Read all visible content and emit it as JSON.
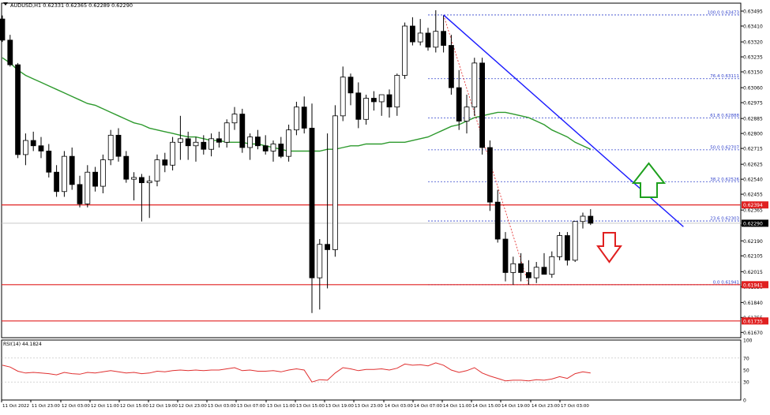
{
  "window": {
    "symbol_header": "AUDUSD,H1  0.62331 0.62365 0.62289 0.62290",
    "rsi_header": "RSI(14) 44.1824"
  },
  "colors": {
    "bull": "#ffffff",
    "bear": "#000000",
    "candle_outline": "#000000",
    "ma": "#2e9a2e",
    "trendline": "#1a1aff",
    "fib": "#3344cc",
    "support_resistance": "#e02020",
    "current_price_line": "#c0c0c0",
    "rsi_line": "#e03030",
    "arrow_up": "#1ea01e",
    "arrow_down": "#e02020",
    "price_badge_bg": "#e02020",
    "price_badge_current_bg": "#000000"
  },
  "chart_data": [
    {
      "type": "candlestick",
      "symbol": "AUDUSD",
      "timeframe": "H1",
      "ylim": [
        0.6164,
        0.6354
      ],
      "y_ticks": [
        "0.63495",
        "0.63410",
        "0.63320",
        "0.63235",
        "0.63150",
        "0.63060",
        "0.62975",
        "0.62885",
        "0.62800",
        "0.62715",
        "0.62625",
        "0.62540",
        "0.62455",
        "0.62365",
        "0.62280",
        "0.62190",
        "0.62105",
        "0.62015",
        "0.61930",
        "0.61840",
        "0.61755",
        "0.61670"
      ],
      "x_ticks": [
        "11 Oct 2022",
        "11 Oct 23:00",
        "12 Oct 03:00",
        "12 Oct 11:00",
        "12 Oct 15:00",
        "12 Oct 19:00",
        "12 Oct 23:00",
        "13 Oct 03:00",
        "13 Oct 07:00",
        "13 Oct 11:00",
        "13 Oct 15:00",
        "13 Oct 19:00",
        "13 Oct 23:00",
        "14 Oct 03:00",
        "14 Oct 07:00",
        "14 Oct 11:00",
        "14 Oct 15:00",
        "14 Oct 19:00",
        "14 Oct 23:00",
        "17 Oct 03:00"
      ],
      "candles": [
        [
          0.6345,
          0.6347,
          0.6332,
          0.6333
        ],
        [
          0.6333,
          0.6336,
          0.6318,
          0.6319
        ],
        [
          0.6319,
          0.632,
          0.6266,
          0.6268
        ],
        [
          0.6268,
          0.628,
          0.6262,
          0.6276
        ],
        [
          0.6276,
          0.6281,
          0.627,
          0.6273
        ],
        [
          0.6273,
          0.6278,
          0.6266,
          0.627
        ],
        [
          0.627,
          0.6274,
          0.6255,
          0.6258
        ],
        [
          0.6258,
          0.6262,
          0.6244,
          0.6247
        ],
        [
          0.6247,
          0.627,
          0.6244,
          0.6267
        ],
        [
          0.6267,
          0.6272,
          0.6248,
          0.6251
        ],
        [
          0.6251,
          0.6256,
          0.6238,
          0.624
        ],
        [
          0.624,
          0.6262,
          0.6238,
          0.6258
        ],
        [
          0.6258,
          0.6261,
          0.6247,
          0.625
        ],
        [
          0.625,
          0.6268,
          0.6246,
          0.6265
        ],
        [
          0.6265,
          0.6282,
          0.6262,
          0.6279
        ],
        [
          0.6279,
          0.6283,
          0.6264,
          0.6267
        ],
        [
          0.6267,
          0.627,
          0.6252,
          0.6254
        ],
        [
          0.6254,
          0.6258,
          0.6242,
          0.6255
        ],
        [
          0.6255,
          0.6257,
          0.623,
          0.6252
        ],
        [
          0.6252,
          0.6256,
          0.6232,
          0.6253
        ],
        [
          0.6253,
          0.6268,
          0.625,
          0.6265
        ],
        [
          0.6265,
          0.6269,
          0.6258,
          0.6262
        ],
        [
          0.6262,
          0.6278,
          0.6259,
          0.6275
        ],
        [
          0.6275,
          0.629,
          0.6265,
          0.6277
        ],
        [
          0.6277,
          0.6281,
          0.6265,
          0.6273
        ],
        [
          0.6273,
          0.6278,
          0.6264,
          0.6275
        ],
        [
          0.6275,
          0.6279,
          0.6268,
          0.6271
        ],
        [
          0.6271,
          0.628,
          0.6267,
          0.6277
        ],
        [
          0.6277,
          0.6281,
          0.6272,
          0.6275
        ],
        [
          0.6275,
          0.6288,
          0.6272,
          0.6286
        ],
        [
          0.6286,
          0.6295,
          0.6282,
          0.6291
        ],
        [
          0.6291,
          0.6294,
          0.6269,
          0.6272
        ],
        [
          0.6272,
          0.628,
          0.6265,
          0.6278
        ],
        [
          0.6278,
          0.6282,
          0.6271,
          0.6273
        ],
        [
          0.6273,
          0.6279,
          0.6268,
          0.627
        ],
        [
          0.627,
          0.6276,
          0.6264,
          0.6274
        ],
        [
          0.6274,
          0.6278,
          0.6266,
          0.6267
        ],
        [
          0.6267,
          0.6285,
          0.6264,
          0.6282
        ],
        [
          0.6282,
          0.6298,
          0.6279,
          0.6295
        ],
        [
          0.6295,
          0.6301,
          0.628,
          0.6283
        ],
        [
          0.6283,
          0.6297,
          0.6178,
          0.6198
        ],
        [
          0.6198,
          0.622,
          0.618,
          0.6217
        ],
        [
          0.6217,
          0.628,
          0.6192,
          0.6214
        ],
        [
          0.6214,
          0.6296,
          0.621,
          0.629
        ],
        [
          0.629,
          0.6318,
          0.6287,
          0.6312
        ],
        [
          0.6312,
          0.6314,
          0.6296,
          0.6303
        ],
        [
          0.6303,
          0.6309,
          0.6283,
          0.6288
        ],
        [
          0.6288,
          0.6302,
          0.6285,
          0.63
        ],
        [
          0.63,
          0.6304,
          0.6293,
          0.6298
        ],
        [
          0.6298,
          0.6302,
          0.629,
          0.6302
        ],
        [
          0.6302,
          0.6305,
          0.6289,
          0.6295
        ],
        [
          0.6295,
          0.6314,
          0.629,
          0.6313
        ],
        [
          0.6313,
          0.6343,
          0.6311,
          0.6341
        ],
        [
          0.6341,
          0.6346,
          0.633,
          0.6332
        ],
        [
          0.6332,
          0.6345,
          0.633,
          0.6337
        ],
        [
          0.6337,
          0.634,
          0.6327,
          0.6329
        ],
        [
          0.6329,
          0.635,
          0.6326,
          0.6338
        ],
        [
          0.6338,
          0.6347,
          0.6326,
          0.633
        ],
        [
          0.633,
          0.6336,
          0.6302,
          0.6306
        ],
        [
          0.6306,
          0.6316,
          0.6282,
          0.6287
        ],
        [
          0.6287,
          0.6302,
          0.628,
          0.6295
        ],
        [
          0.6295,
          0.6323,
          0.629,
          0.632
        ],
        [
          0.632,
          0.6323,
          0.6268,
          0.6272
        ],
        [
          0.6272,
          0.6276,
          0.6236,
          0.6241
        ],
        [
          0.6241,
          0.6248,
          0.6218,
          0.622
        ],
        [
          0.622,
          0.6224,
          0.6196,
          0.6201
        ],
        [
          0.6201,
          0.621,
          0.6194,
          0.6206
        ],
        [
          0.6206,
          0.6212,
          0.6196,
          0.6201
        ],
        [
          0.6201,
          0.6208,
          0.6194,
          0.6198
        ],
        [
          0.6198,
          0.6207,
          0.6195,
          0.6204
        ],
        [
          0.6204,
          0.6212,
          0.62,
          0.62
        ],
        [
          0.62,
          0.6213,
          0.6198,
          0.621
        ],
        [
          0.621,
          0.6224,
          0.6208,
          0.6222
        ],
        [
          0.6222,
          0.6224,
          0.6205,
          0.6208
        ],
        [
          0.6208,
          0.623,
          0.6207,
          0.623
        ],
        [
          0.623,
          0.6235,
          0.6226,
          0.6233
        ],
        [
          0.6233,
          0.6237,
          0.6228,
          0.6229
        ]
      ],
      "moving_average": [
        0.6323,
        0.632,
        0.6316,
        0.6313,
        0.6311,
        0.6309,
        0.6307,
        0.6305,
        0.6303,
        0.6301,
        0.6299,
        0.6297,
        0.6296,
        0.6294,
        0.6292,
        0.629,
        0.6288,
        0.6286,
        0.6285,
        0.6283,
        0.6282,
        0.6281,
        0.628,
        0.6279,
        0.6278,
        0.6278,
        0.6277,
        0.6276,
        0.6276,
        0.6275,
        0.6275,
        0.6275,
        0.6274,
        0.6274,
        0.6273,
        0.6272,
        0.6271,
        0.627,
        0.627,
        0.627,
        0.627,
        0.627,
        0.6271,
        0.6271,
        0.6272,
        0.6273,
        0.6273,
        0.6274,
        0.6274,
        0.6274,
        0.6275,
        0.6275,
        0.6275,
        0.6276,
        0.6277,
        0.6278,
        0.628,
        0.6282,
        0.6284,
        0.6285,
        0.6287,
        0.6289,
        0.629,
        0.6291,
        0.6292,
        0.6292,
        0.6291,
        0.629,
        0.6289,
        0.6287,
        0.6285,
        0.6282,
        0.628,
        0.6278,
        0.6275,
        0.6273,
        0.6271
      ],
      "fibonacci": [
        {
          "label": "100.0 0.63473",
          "price": 0.63473
        },
        {
          "label": "76.4 0.63111",
          "price": 0.63111
        },
        {
          "label": "61.8 0.62888",
          "price": 0.62888
        },
        {
          "label": "50.0 0.62707",
          "price": 0.62707
        },
        {
          "label": "38.2 0.62526",
          "price": 0.62526
        },
        {
          "label": "23.6 0.62303",
          "price": 0.62303
        },
        {
          "label": "0.0 0.61941",
          "price": 0.61941
        }
      ],
      "horizontal_levels": [
        {
          "price": 0.62394,
          "label": "0.62394",
          "color": "red"
        },
        {
          "price": 0.61941,
          "label": "0.61941",
          "color": "red"
        },
        {
          "price": 0.61735,
          "label": "0.61735",
          "color": "red"
        }
      ],
      "current_price": {
        "price": 0.6229,
        "label": "0.62290"
      },
      "trendline": {
        "from": {
          "bar": 57,
          "price": 0.63473
        },
        "to": {
          "bar": 88,
          "price": 0.6227
        }
      },
      "signals": [
        {
          "type": "arrow_up",
          "color": "green"
        },
        {
          "type": "arrow_down",
          "color": "red"
        }
      ]
    },
    {
      "type": "line",
      "name": "RSI(14)",
      "ylim": [
        0,
        100
      ],
      "y_ticks": [
        "100",
        "70",
        "50",
        "30",
        "0"
      ],
      "values": [
        58,
        55,
        48,
        45,
        46,
        45,
        44,
        42,
        46,
        44,
        43,
        46,
        45,
        47,
        49,
        47,
        45,
        46,
        44,
        45,
        48,
        47,
        49,
        50,
        49,
        50,
        49,
        50,
        50,
        52,
        54,
        49,
        50,
        48,
        48,
        49,
        47,
        50,
        52,
        50,
        30,
        34,
        33,
        45,
        54,
        52,
        49,
        51,
        51,
        52,
        50,
        53,
        60,
        58,
        59,
        57,
        62,
        58,
        50,
        46,
        49,
        54,
        45,
        40,
        36,
        32,
        33,
        33,
        32,
        34,
        33,
        35,
        39,
        36,
        44,
        47,
        45
      ]
    }
  ]
}
